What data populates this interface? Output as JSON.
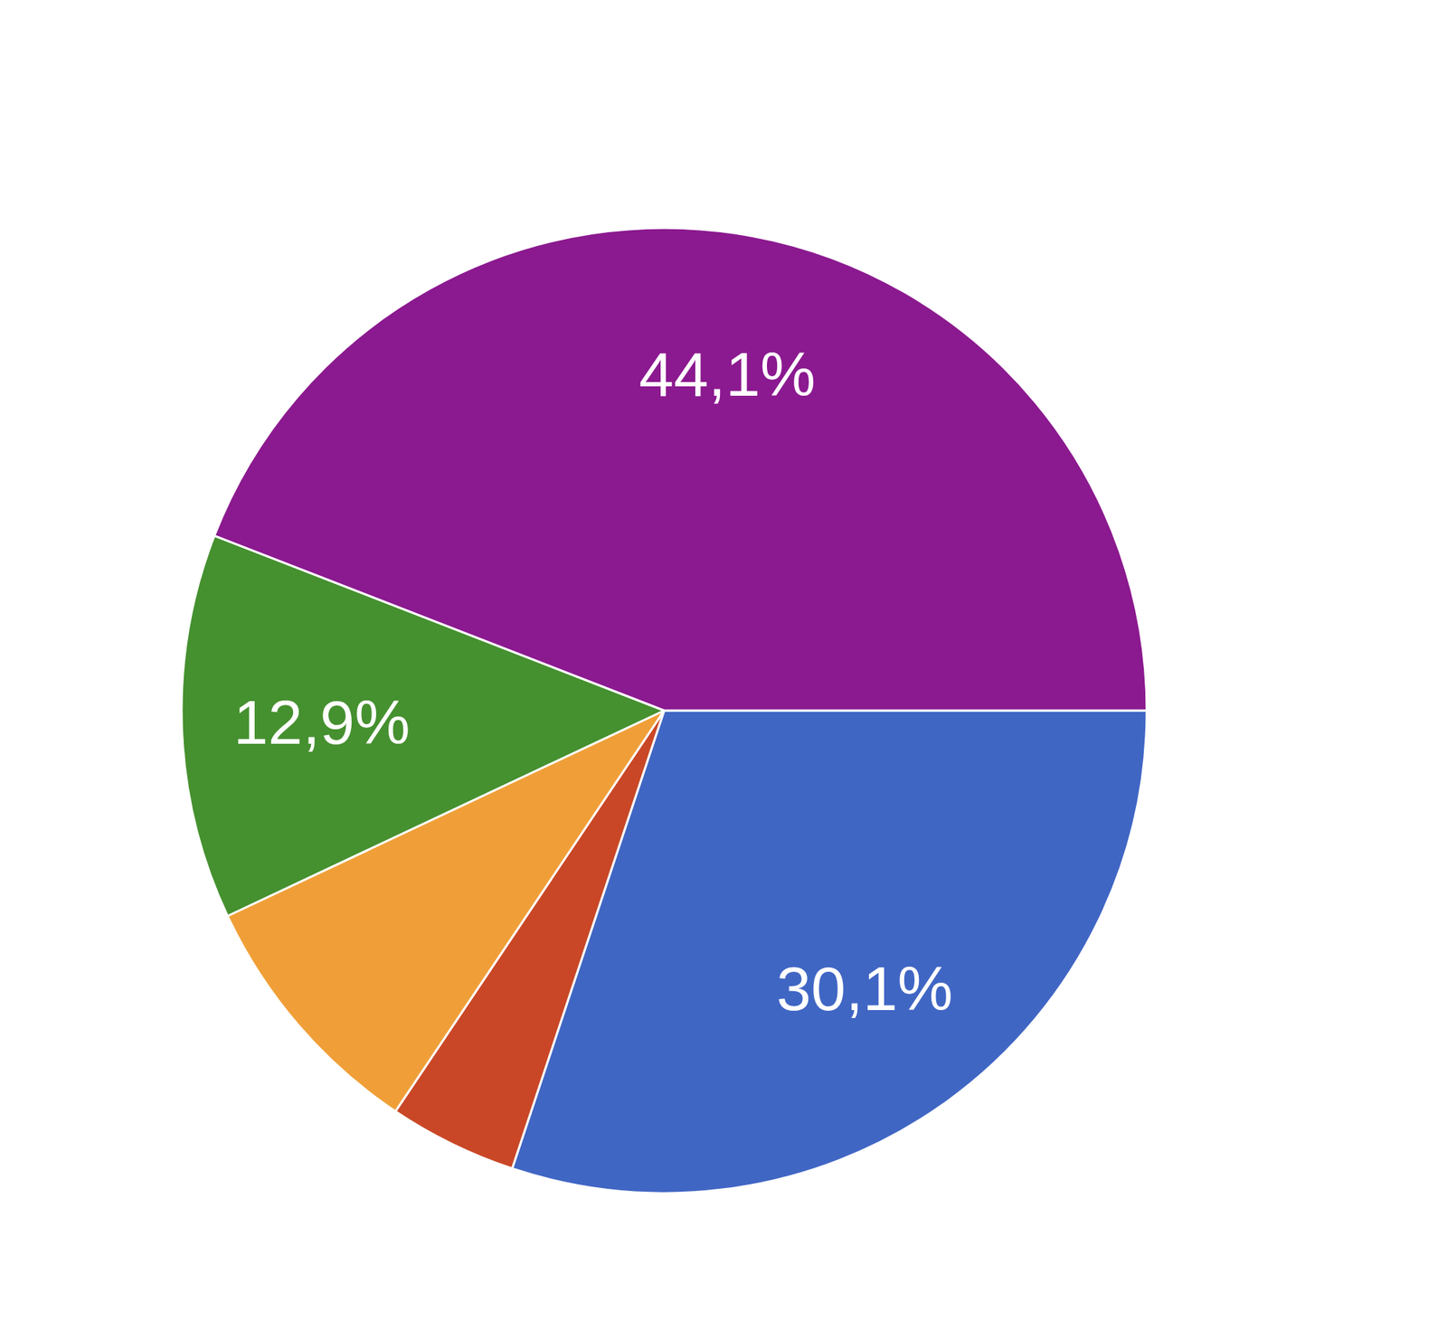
{
  "chart_data": {
    "type": "pie",
    "values": [
      30.1,
      4.3,
      8.6,
      12.9,
      44.1
    ],
    "value_labels": [
      "30,1%",
      null,
      null,
      "12,9%",
      "44,1%"
    ],
    "colors": [
      "#4066c4",
      "#c94726",
      "#f09f38",
      "#45902f",
      "#8b198f"
    ],
    "data_labels": true
  }
}
